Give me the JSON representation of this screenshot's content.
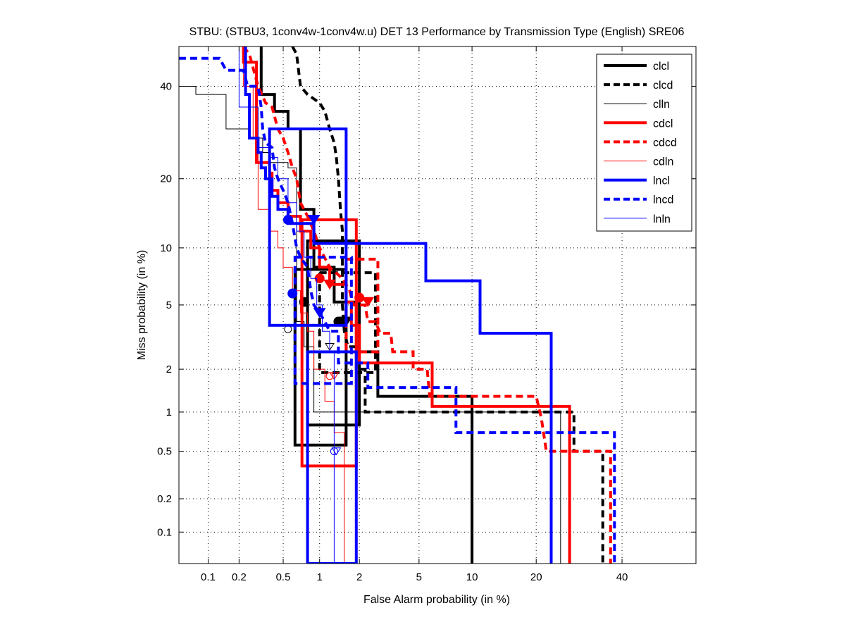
{
  "chart_data": {
    "type": "line",
    "title": "STBU: (STBU3, 1conv4w-1conv4w.u) DET 13 Performance by Transmission Type (English) SRE06",
    "xlabel": "False Alarm probability (in %)",
    "ylabel": "Miss probability (in %)",
    "scale": "normal-deviate (DET)",
    "xlim": [
      0.05,
      60
    ],
    "ylim": [
      0.05,
      50
    ],
    "grid": true,
    "legend_position": "top-right",
    "x_ticks": [
      "0.1",
      "0.2",
      "0.5",
      "1",
      "2",
      "5",
      "10",
      "20",
      "40"
    ],
    "x_tick_values": [
      0.1,
      0.2,
      0.5,
      1,
      2,
      5,
      10,
      20,
      40
    ],
    "y_ticks": [
      "0.1",
      "0.2",
      "0.5",
      "1",
      "2",
      "5",
      "10",
      "20",
      "40"
    ],
    "y_tick_values": [
      0.1,
      0.2,
      0.5,
      1,
      2,
      5,
      10,
      20,
      40
    ],
    "series": [
      {
        "name": "clcl",
        "color": "#000000",
        "style": "solid",
        "weight": "thick",
        "points": [
          [
            0.32,
            50
          ],
          [
            0.32,
            38
          ],
          [
            0.42,
            38
          ],
          [
            0.42,
            34
          ],
          [
            0.55,
            34
          ],
          [
            0.55,
            30
          ],
          [
            0.7,
            30
          ],
          [
            0.7,
            15
          ],
          [
            0.9,
            15
          ],
          [
            0.9,
            8
          ],
          [
            1.3,
            8
          ],
          [
            1.3,
            5.2
          ],
          [
            1.9,
            5.2
          ],
          [
            1.9,
            2.6
          ],
          [
            2.7,
            2.6
          ],
          [
            2.7,
            1.3
          ],
          [
            10,
            1.3
          ],
          [
            10,
            0.05
          ]
        ],
        "confidence_box": {
          "fa": [
            0.63,
            1.6
          ],
          "miss": [
            0.56,
            7.8
          ]
        },
        "confidence_box2": {
          "fa": [
            0.8,
            2.0
          ],
          "miss": [
            0.8,
            10.8
          ]
        },
        "min_dcf": [
          0.75,
          5.2
        ],
        "actual_dcf": [
          1.55,
          4.0
        ]
      },
      {
        "name": "clcd",
        "color": "#000000",
        "style": "dashed",
        "weight": "thick",
        "points": [
          [
            0.6,
            50
          ],
          [
            0.65,
            48
          ],
          [
            0.7,
            40
          ],
          [
            0.8,
            38
          ],
          [
            1.0,
            36
          ],
          [
            1.1,
            34
          ],
          [
            1.2,
            30
          ],
          [
            1.3,
            27
          ],
          [
            1.35,
            24
          ],
          [
            1.4,
            20
          ],
          [
            1.45,
            15
          ],
          [
            1.5,
            12
          ],
          [
            1.5,
            5
          ],
          [
            1.55,
            3.5
          ],
          [
            1.65,
            2.8
          ],
          [
            1.9,
            2.8
          ],
          [
            1.9,
            2.0
          ],
          [
            2.2,
            2.0
          ],
          [
            2.2,
            1.0
          ],
          [
            28,
            1.0
          ],
          [
            28,
            0.5
          ],
          [
            35,
            0.5
          ],
          [
            35,
            0.05
          ]
        ],
        "confidence_box": {
          "fa": [
            1.0,
            2.6
          ],
          "miss": [
            1.9,
            7.5
          ]
        },
        "min_dcf": [
          1.4,
          4.0
        ],
        "actual_dcf": [
          1.6,
          4.0
        ]
      },
      {
        "name": "clln",
        "color": "#000000",
        "style": "solid",
        "weight": "thin",
        "points": [
          [
            0.05,
            40
          ],
          [
            0.075,
            40
          ],
          [
            0.075,
            38
          ],
          [
            0.15,
            38
          ],
          [
            0.15,
            30
          ],
          [
            0.25,
            30
          ],
          [
            0.25,
            28
          ],
          [
            0.33,
            28
          ],
          [
            0.33,
            25
          ],
          [
            0.38,
            25
          ],
          [
            0.38,
            23
          ],
          [
            0.55,
            23
          ],
          [
            0.55,
            22
          ],
          [
            0.65,
            22
          ],
          [
            0.65,
            4.0
          ],
          [
            0.75,
            4.0
          ],
          [
            0.75,
            2.8
          ],
          [
            0.9,
            2.8
          ],
          [
            0.9,
            1.0
          ],
          [
            25,
            1.0
          ],
          [
            25,
            0.05
          ]
        ],
        "min_dcf": [
          0.55,
          3.6
        ],
        "actual_dcf": [
          1.2,
          2.8
        ]
      },
      {
        "name": "cdcl",
        "color": "#ff0000",
        "style": "solid",
        "weight": "thick",
        "points": [
          [
            0.22,
            50
          ],
          [
            0.22,
            46
          ],
          [
            0.29,
            46
          ],
          [
            0.29,
            23
          ],
          [
            0.38,
            23
          ],
          [
            0.38,
            21
          ],
          [
            0.4,
            21
          ],
          [
            0.4,
            18
          ],
          [
            0.45,
            18
          ],
          [
            0.45,
            16
          ],
          [
            0.55,
            16
          ],
          [
            0.55,
            14
          ],
          [
            0.7,
            14
          ],
          [
            0.7,
            12
          ],
          [
            0.85,
            12
          ],
          [
            0.85,
            10
          ],
          [
            1.0,
            10
          ],
          [
            1.0,
            8
          ],
          [
            1.2,
            8
          ],
          [
            1.2,
            6.5
          ],
          [
            1.6,
            6.5
          ],
          [
            1.6,
            5.2
          ],
          [
            1.75,
            5.2
          ],
          [
            1.75,
            3.8
          ],
          [
            2.0,
            3.8
          ],
          [
            2.0,
            2.2
          ],
          [
            6,
            2.2
          ],
          [
            6,
            1.1
          ],
          [
            27,
            1.1
          ],
          [
            27,
            0.05
          ]
        ],
        "confidence_box": {
          "fa": [
            0.72,
            1.9
          ],
          "miss": [
            0.38,
            13.5
          ]
        },
        "min_dcf": [
          1.0,
          7.0
        ],
        "actual_dcf": [
          1.2,
          6.5
        ]
      },
      {
        "name": "cdcd",
        "color": "#ff0000",
        "style": "dashed",
        "weight": "thick",
        "points": [
          [
            0.22,
            50
          ],
          [
            0.25,
            48
          ],
          [
            0.3,
            40
          ],
          [
            0.35,
            36
          ],
          [
            0.4,
            35
          ],
          [
            0.45,
            30
          ],
          [
            0.5,
            28
          ],
          [
            0.55,
            25
          ],
          [
            0.6,
            22
          ],
          [
            0.65,
            20
          ],
          [
            0.7,
            16
          ],
          [
            0.8,
            14
          ],
          [
            0.9,
            12
          ],
          [
            1.0,
            10
          ],
          [
            1.2,
            8
          ],
          [
            1.5,
            7
          ],
          [
            1.7,
            6
          ],
          [
            1.8,
            5
          ],
          [
            2.2,
            5
          ],
          [
            2.3,
            4
          ],
          [
            2.6,
            4
          ],
          [
            2.8,
            3.4
          ],
          [
            3.3,
            3.4
          ],
          [
            3.4,
            2.6
          ],
          [
            4.6,
            2.6
          ],
          [
            4.6,
            2.0
          ],
          [
            5.6,
            2.0
          ],
          [
            5.8,
            1.3
          ],
          [
            20,
            1.3
          ],
          [
            21,
            0.9
          ],
          [
            22,
            0.5
          ],
          [
            37,
            0.5
          ],
          [
            37,
            0.05
          ]
        ],
        "confidence_box": {
          "fa": [
            1.6,
            2.7
          ],
          "miss": [
            2.6,
            8.8
          ]
        },
        "min_dcf": [
          2.0,
          5.5
        ],
        "actual_dcf": [
          2.3,
          5.2
        ]
      },
      {
        "name": "cdln",
        "color": "#ff0000",
        "style": "solid",
        "weight": "thin",
        "points": [
          [
            0.22,
            50
          ],
          [
            0.22,
            40
          ],
          [
            0.27,
            40
          ],
          [
            0.27,
            28
          ],
          [
            0.3,
            28
          ],
          [
            0.3,
            15
          ],
          [
            0.38,
            15
          ],
          [
            0.38,
            12
          ],
          [
            0.45,
            12
          ],
          [
            0.45,
            10
          ],
          [
            0.5,
            10
          ],
          [
            0.5,
            8
          ],
          [
            0.6,
            8
          ],
          [
            0.6,
            6
          ],
          [
            0.7,
            6
          ],
          [
            0.7,
            4.5
          ],
          [
            0.8,
            4.5
          ],
          [
            0.8,
            3.5
          ],
          [
            0.9,
            3.5
          ],
          [
            0.9,
            2.0
          ],
          [
            1.1,
            2.0
          ],
          [
            1.1,
            1.2
          ],
          [
            1.3,
            1.2
          ],
          [
            1.3,
            0.7
          ],
          [
            1.55,
            0.7
          ],
          [
            1.55,
            0.05
          ]
        ],
        "min_dcf": [
          1.2,
          1.8
        ],
        "actual_dcf": [
          1.3,
          1.8
        ]
      },
      {
        "name": "lncl",
        "color": "#0000ff",
        "style": "solid",
        "weight": "thick",
        "points": [
          [
            0.23,
            50
          ],
          [
            0.23,
            38
          ],
          [
            0.25,
            38
          ],
          [
            0.25,
            28
          ],
          [
            0.3,
            28
          ],
          [
            0.3,
            25
          ],
          [
            0.32,
            25
          ],
          [
            0.32,
            22
          ],
          [
            0.35,
            22
          ],
          [
            0.35,
            20
          ],
          [
            0.4,
            20
          ],
          [
            0.4,
            17
          ],
          [
            0.45,
            17
          ],
          [
            0.45,
            15
          ],
          [
            0.55,
            15
          ],
          [
            0.55,
            13
          ],
          [
            0.9,
            13
          ],
          [
            0.9,
            10.5
          ],
          [
            5.5,
            10.5
          ],
          [
            5.5,
            6.8
          ],
          [
            11,
            6.8
          ],
          [
            11,
            3.4
          ],
          [
            23,
            3.4
          ],
          [
            23,
            0.05
          ]
        ],
        "confidence_box": {
          "fa": [
            0.38,
            1.6
          ],
          "miss": [
            3.8,
            30
          ]
        },
        "confidence_box2": {
          "fa": [
            0.8,
            1.9
          ],
          "miss": [
            0.05,
            2.6
          ]
        },
        "min_dcf": [
          0.55,
          13.5
        ],
        "actual_dcf": [
          0.9,
          13.5
        ]
      },
      {
        "name": "lncd",
        "color": "#0000ff",
        "style": "dashed",
        "weight": "thick",
        "points": [
          [
            0.05,
            47
          ],
          [
            0.13,
            47
          ],
          [
            0.15,
            44
          ],
          [
            0.22,
            44
          ],
          [
            0.24,
            40
          ],
          [
            0.3,
            40
          ],
          [
            0.32,
            35
          ],
          [
            0.33,
            30
          ],
          [
            0.35,
            27
          ],
          [
            0.4,
            26
          ],
          [
            0.42,
            22
          ],
          [
            0.45,
            20
          ],
          [
            0.5,
            18
          ],
          [
            0.55,
            16
          ],
          [
            0.6,
            13
          ],
          [
            0.65,
            10
          ],
          [
            0.7,
            9
          ],
          [
            0.8,
            8
          ],
          [
            0.85,
            6
          ],
          [
            0.9,
            5
          ],
          [
            1.0,
            4.5
          ],
          [
            1.1,
            4.0
          ],
          [
            1.2,
            3.5
          ],
          [
            1.4,
            3.5
          ],
          [
            1.4,
            2.2
          ],
          [
            2.3,
            2.2
          ],
          [
            2.3,
            1.5
          ],
          [
            8.2,
            1.5
          ],
          [
            8.2,
            0.7
          ],
          [
            38,
            0.7
          ],
          [
            38,
            0.05
          ]
        ],
        "confidence_box": {
          "fa": [
            0.63,
            1.75
          ],
          "miss": [
            1.6,
            9.0
          ]
        },
        "min_dcf": [
          0.6,
          5.8
        ],
        "actual_dcf": [
          1.0,
          4.5
        ]
      },
      {
        "name": "lnln",
        "color": "#0000ff",
        "style": "solid",
        "weight": "thin",
        "points": [
          [
            0.2,
            50
          ],
          [
            0.2,
            35
          ],
          [
            0.3,
            35
          ],
          [
            0.3,
            26
          ],
          [
            0.38,
            26
          ],
          [
            0.38,
            24
          ],
          [
            0.45,
            24
          ],
          [
            0.45,
            20
          ],
          [
            0.55,
            20
          ],
          [
            0.55,
            16
          ],
          [
            0.65,
            16
          ],
          [
            0.65,
            12
          ],
          [
            0.75,
            12
          ],
          [
            0.75,
            9
          ],
          [
            0.85,
            9
          ],
          [
            0.85,
            7
          ],
          [
            0.95,
            7
          ],
          [
            0.95,
            5
          ],
          [
            1.05,
            5
          ],
          [
            1.05,
            3.5
          ],
          [
            1.2,
            3.5
          ],
          [
            1.2,
            2.6
          ],
          [
            1.3,
            2.6
          ],
          [
            1.3,
            0.05
          ]
        ],
        "min_dcf": [
          1.3,
          0.5
        ],
        "actual_dcf": [
          1.35,
          0.5
        ]
      }
    ]
  }
}
